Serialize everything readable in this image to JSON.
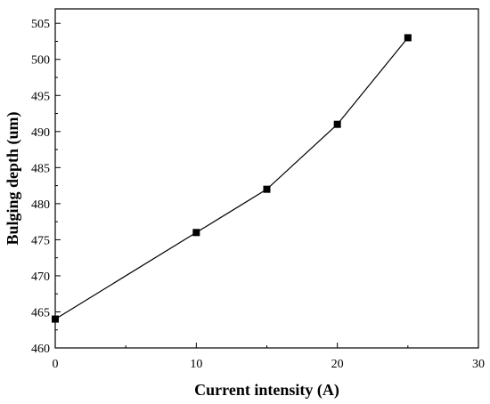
{
  "chart_data": {
    "type": "line",
    "title": "",
    "xlabel": "Current intensity (A)",
    "ylabel": "Bulging depth (um)",
    "xlim": [
      0,
      30
    ],
    "ylim": [
      460,
      507
    ],
    "xticks": [
      0,
      10,
      20,
      30
    ],
    "yticks": [
      460,
      465,
      470,
      475,
      480,
      485,
      490,
      495,
      500,
      505
    ],
    "grid": false,
    "legend": "none",
    "series": [
      {
        "x": [
          0,
          10,
          15,
          20,
          25
        ],
        "y": [
          464,
          476,
          482,
          491,
          503
        ],
        "marker": "square",
        "color": "#000000"
      }
    ]
  }
}
